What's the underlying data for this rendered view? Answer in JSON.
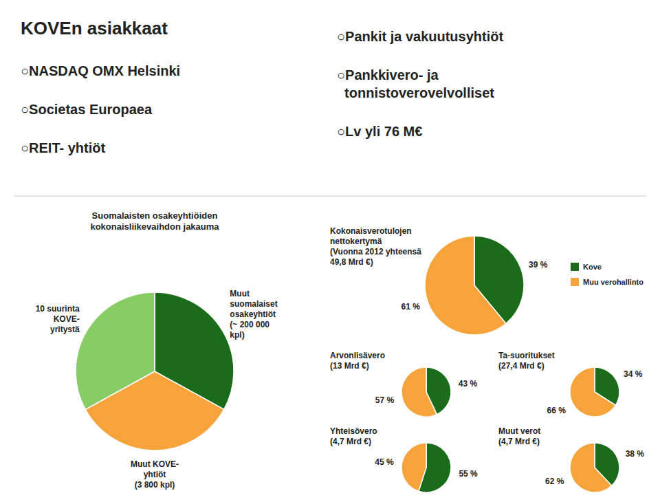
{
  "chart_data": [
    {
      "type": "text",
      "title": "KOVEn asiakkaat",
      "annotations": [
        "○NASDAQ OMX Helsinki",
        "○Societas Europaea",
        "○REIT- yhtiöt"
      ]
    },
    {
      "type": "text",
      "annotations": [
        "○Pankit ja vakuutusyhtiöt",
        "○Pankkivero- ja\n  tonnistoverovelvolliset",
        "○Lv yli 76 M€"
      ]
    },
    {
      "type": "pie",
      "title": "Suomalaisten osakeyhtiöiden\nkokonaisliikevaihdon jakauma",
      "categories": [
        "Muut\nsuomalaiset\nosakeyhtiöt\n(~ 200 000\nkpl)",
        "Muut KOVE-\nyhtiöt\n(3 800 kpl)",
        "10 suurinta\nKOVE-\nyritystä"
      ],
      "values": [
        33,
        34,
        33
      ],
      "colors": [
        "#1A6B1A",
        "#F5A33A",
        "#88CC66"
      ]
    },
    {
      "type": "pie",
      "title": "Kokonaisverotulojen\nnettokertymä\n(Vuonna 2012 yhteensä\n49,8 Mrd €)",
      "categories": [
        "Kove",
        "Muu verohallinto"
      ],
      "values": [
        39,
        61
      ],
      "value_labels": [
        "39 %",
        "61 %"
      ],
      "data_labels": true,
      "colors": [
        "#1A6B1A",
        "#F5A33A"
      ],
      "legend": "right"
    },
    {
      "type": "pie",
      "title": "Arvonlisävero\n(13 Mrd €)",
      "values": [
        43,
        57
      ],
      "value_labels": [
        "43 %",
        "57 %"
      ],
      "data_labels": true,
      "colors": [
        "#1A6B1A",
        "#F5A33A"
      ]
    },
    {
      "type": "pie",
      "title": "Ta-suoritukset\n(27,4 Mrd €)",
      "values": [
        34,
        66
      ],
      "value_labels": [
        "34 %",
        "66 %"
      ],
      "data_labels": true,
      "colors": [
        "#1A6B1A",
        "#F5A33A"
      ]
    },
    {
      "type": "pie",
      "title": "Yhteisövero\n(4,7 Mrd €)",
      "values": [
        55,
        45
      ],
      "value_labels": [
        "55 %",
        "45 %"
      ],
      "data_labels": true,
      "colors": [
        "#1A6B1A",
        "#F5A33A"
      ]
    },
    {
      "type": "pie",
      "title": "Muut verot\n(4,7 Mrd €)",
      "values": [
        38,
        62
      ],
      "value_labels": [
        "38 %",
        "62 %"
      ],
      "data_labels": true,
      "colors": [
        "#1A6B1A",
        "#F5A33A"
      ]
    }
  ]
}
